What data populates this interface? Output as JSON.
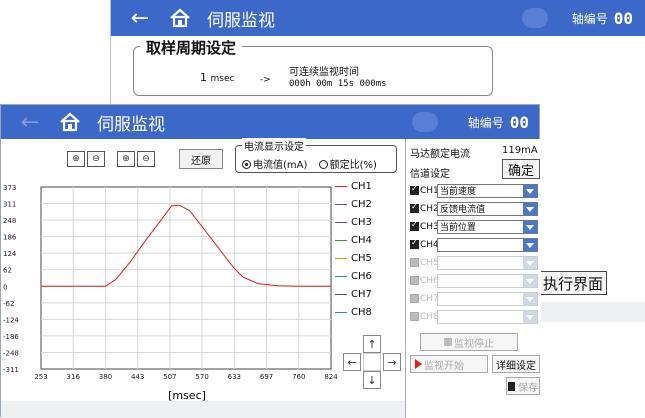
{
  "back": {
    "header": {
      "back_icon": "left-arrow-icon",
      "home_icon": "home-icon",
      "title": "伺服监视",
      "axis_label": "轴编号",
      "axis_value": "00"
    },
    "sampling": {
      "legend": "取样周期设定",
      "value": "1",
      "unit": "msec",
      "arrow": "->",
      "continuous_label": "可连续监视时间",
      "continuous_value": "000h 00m 15s 000ms"
    },
    "exec_button": "执行界面"
  },
  "front": {
    "header": {
      "home_icon": "home-icon",
      "title": "伺服监视",
      "axis_label": "轴编号",
      "axis_value": "00"
    },
    "restore_button": "还原",
    "current_display": {
      "legend": "电流显示设定",
      "options": [
        "电流值(mA)",
        "额定比(%)"
      ],
      "selected": 0
    },
    "chart_xlabel": "[msec]",
    "right_panel": {
      "rated_current_label": "马达额定电流",
      "rated_current_value": "119mA",
      "channel_settings_label": "信道设定",
      "confirm_button": "确定",
      "channels": [
        {
          "name": "CH1",
          "value": "当前速度",
          "checked": true,
          "enabled": true
        },
        {
          "name": "CH2",
          "value": "反馈电流值",
          "checked": true,
          "enabled": true
        },
        {
          "name": "CH3",
          "value": "当前位置",
          "checked": true,
          "enabled": true
        },
        {
          "name": "CH4",
          "value": "",
          "checked": true,
          "enabled": true
        },
        {
          "name": "CH5",
          "value": "",
          "checked": false,
          "enabled": false
        },
        {
          "name": "CH6",
          "value": "",
          "checked": false,
          "enabled": false
        },
        {
          "name": "CH7",
          "value": "",
          "checked": false,
          "enabled": false
        },
        {
          "name": "CH8",
          "value": "",
          "checked": false,
          "enabled": false
        }
      ],
      "stop_button": "监视停止",
      "start_button": "监视开始",
      "detail_button": "详细设定",
      "save_button": "保存"
    }
  },
  "colors": {
    "header": "#3b68c9",
    "ch1": "#e02020"
  },
  "chart_data": {
    "type": "line",
    "xlabel": "[msec]",
    "ylabel": "",
    "xlim": [
      253,
      824
    ],
    "ylim": [
      -311,
      373
    ],
    "x_ticks": [
      "253",
      "316",
      "380",
      "443",
      "507",
      "570",
      "633",
      "697",
      "760",
      "824"
    ],
    "y_ticks": [
      "373",
      "311",
      "248",
      "186",
      "124",
      "62",
      "0",
      "-62",
      "-124",
      "-186",
      "-248",
      "-311"
    ],
    "grid": true,
    "legend": [
      "CH1",
      "CH2",
      "CH3",
      "CH4",
      "CH5",
      "CH6",
      "CH7",
      "CH8"
    ],
    "legend_colors": [
      "#e02020",
      "#7a3fb8",
      "#7a3fb8",
      "#2e9a3a",
      "#c7a800",
      "#2a8f8f",
      "#555555",
      "#2a8f8f"
    ],
    "series": [
      {
        "name": "CH1",
        "x": [
          253,
          350,
          380,
          400,
          430,
          460,
          490,
          510,
          525,
          545,
          570,
          600,
          630,
          650,
          680,
          720,
          760,
          824
        ],
        "y": [
          0,
          0,
          0,
          25,
          95,
          175,
          250,
          302,
          305,
          285,
          225,
          150,
          75,
          35,
          10,
          2,
          0,
          0
        ]
      }
    ]
  }
}
